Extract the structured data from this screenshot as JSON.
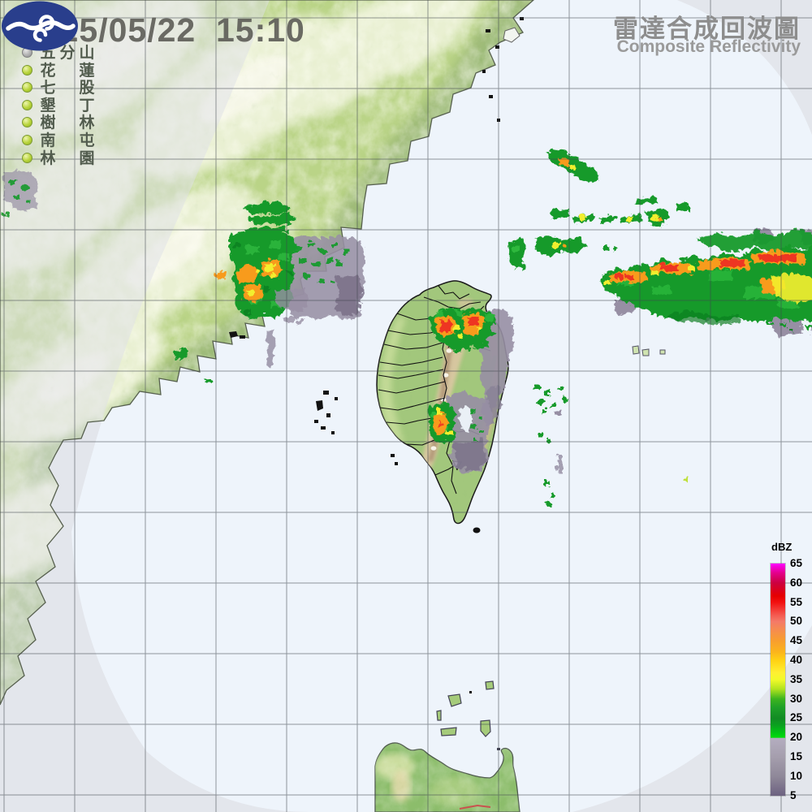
{
  "header": {
    "timestamp": "2025/05/22  15:10",
    "title_zh": "雷達合成回波圖",
    "title_en": "Composite Reflectivity"
  },
  "stations": {
    "description": "radar site status list",
    "items": [
      {
        "name": "五分山",
        "chars": [
          "五",
          "分",
          "山"
        ],
        "status": "inactive"
      },
      {
        "name": "花蓮",
        "chars": [
          "花",
          "",
          "蓮"
        ],
        "status": "active"
      },
      {
        "name": "七股",
        "chars": [
          "七",
          "",
          "股"
        ],
        "status": "active"
      },
      {
        "name": "墾丁",
        "chars": [
          "墾",
          "",
          "丁"
        ],
        "status": "active"
      },
      {
        "name": "樹林",
        "chars": [
          "樹",
          "",
          "林"
        ],
        "status": "active"
      },
      {
        "name": "南屯",
        "chars": [
          "南",
          "",
          "屯"
        ],
        "status": "active"
      },
      {
        "name": "林園",
        "chars": [
          "林",
          "",
          "園"
        ],
        "status": "active"
      }
    ],
    "status_colors": {
      "active": "#b7d338",
      "inactive": "#b0b0b0"
    }
  },
  "legend": {
    "title": "dBZ",
    "ticks": [
      65,
      60,
      55,
      50,
      45,
      40,
      35,
      30,
      25,
      20,
      15,
      10,
      5
    ],
    "stops": [
      {
        "dbz": 65,
        "color": "#ff00ff"
      },
      {
        "dbz": 60,
        "color": "#cc0040"
      },
      {
        "dbz": 55,
        "color": "#f21010"
      },
      {
        "dbz": 50,
        "color": "#f47a68"
      },
      {
        "dbz": 45,
        "color": "#f89e2e"
      },
      {
        "dbz": 40,
        "color": "#ffd214"
      },
      {
        "dbz": 35,
        "color": "#f2fa2a"
      },
      {
        "dbz": 30,
        "color": "#128c24"
      },
      {
        "dbz": 25,
        "color": "#0aa41e"
      },
      {
        "dbz": 20,
        "color": "#00dc0a"
      },
      {
        "dbz": 15,
        "color": "#a59ead"
      },
      {
        "dbz": 10,
        "color": "#8f8899"
      },
      {
        "dbz": 5,
        "color": "#6c6180"
      }
    ]
  },
  "map": {
    "sea_inside_color": "#eef4fb",
    "sea_outside_color": "#e7e9ee",
    "grid_color": "#3f454d",
    "echo_colors": {
      "green_bright": "#2db83d",
      "green": "#159a2b",
      "green_dark": "#0c7f22",
      "yellow": "#f2ee2e",
      "orange": "#f89b1c",
      "red": "#ee3524",
      "gray_light": "#b3abbd",
      "gray": "#978fa4",
      "gray_dark": "#7a7088"
    }
  },
  "logo": {
    "name": "central-weather-bureau-logo",
    "color": "#293e8c"
  }
}
